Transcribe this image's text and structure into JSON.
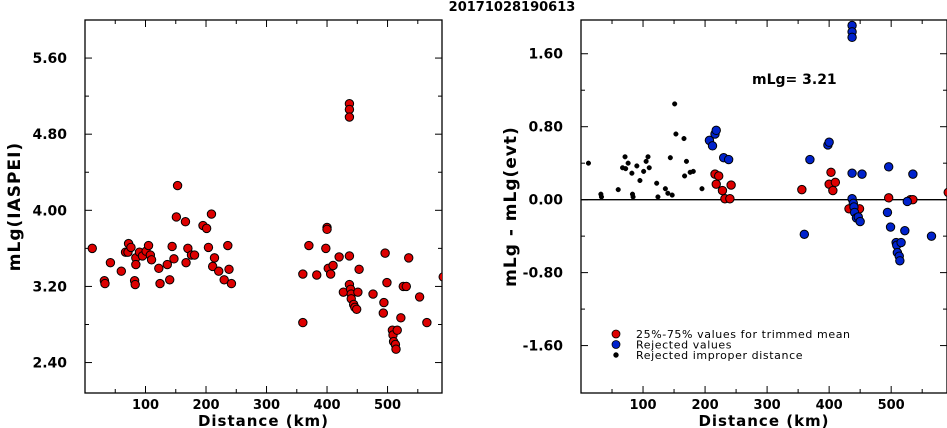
{
  "title": "20171028190613",
  "chart_data": [
    {
      "type": "scatter",
      "xlabel": "Distance (km)",
      "ylabel": "mLg(IASPEI)",
      "xlim": [
        0,
        590
      ],
      "ylim": [
        2.08,
        6.0
      ],
      "xticks": [
        "100",
        "200",
        "300",
        "400",
        "500"
      ],
      "yticks": [
        "5.60",
        "4.80",
        "4.00",
        "3.20",
        "2.40"
      ],
      "series": [
        {
          "color": "#dd0000",
          "points": [
            [
              12,
              3.6
            ],
            [
              32,
              3.26
            ],
            [
              33,
              3.23
            ],
            [
              42,
              3.45
            ],
            [
              60,
              3.36
            ],
            [
              67,
              3.56
            ],
            [
              71,
              3.56
            ],
            [
              72,
              3.65
            ],
            [
              76,
              3.61
            ],
            [
              82,
              3.26
            ],
            [
              83,
              3.22
            ],
            [
              84,
              3.5
            ],
            [
              84,
              3.43
            ],
            [
              90,
              3.56
            ],
            [
              95,
              3.52
            ],
            [
              101,
              3.57
            ],
            [
              105,
              3.63
            ],
            [
              108,
              3.53
            ],
            [
              110,
              3.48
            ],
            [
              122,
              3.39
            ],
            [
              124,
              3.23
            ],
            [
              136,
              3.43
            ],
            [
              140,
              3.27
            ],
            [
              144,
              3.62
            ],
            [
              147,
              3.49
            ],
            [
              151,
              3.93
            ],
            [
              153,
              4.26
            ],
            [
              166,
              3.88
            ],
            [
              167,
              3.45
            ],
            [
              170,
              3.6
            ],
            [
              176,
              3.53
            ],
            [
              181,
              3.53
            ],
            [
              195,
              3.84
            ],
            [
              201,
              3.81
            ],
            [
              204,
              3.61
            ],
            [
              209,
              3.96
            ],
            [
              211,
              3.41
            ],
            [
              214,
              3.5
            ],
            [
              221,
              3.36
            ],
            [
              230,
              3.27
            ],
            [
              236,
              3.63
            ],
            [
              238,
              3.38
            ],
            [
              242,
              3.23
            ],
            [
              360,
              2.82
            ],
            [
              360,
              3.33
            ],
            [
              370,
              3.63
            ],
            [
              383,
              3.32
            ],
            [
              398,
              3.6
            ],
            [
              400,
              3.82
            ],
            [
              400,
              3.8
            ],
            [
              402,
              3.39
            ],
            [
              406,
              3.33
            ],
            [
              410,
              3.42
            ],
            [
              420,
              3.51
            ],
            [
              427,
              3.14
            ],
            [
              437,
              5.12
            ],
            [
              437,
              5.06
            ],
            [
              437,
              4.98
            ],
            [
              437,
              3.52
            ],
            [
              437,
              3.22
            ],
            [
              439,
              3.17
            ],
            [
              440,
              3.12
            ],
            [
              440,
              3.07
            ],
            [
              444,
              3.01
            ],
            [
              446,
              2.98
            ],
            [
              449,
              2.96
            ],
            [
              451,
              3.14
            ],
            [
              453,
              3.38
            ],
            [
              476,
              3.12
            ],
            [
              493,
              2.92
            ],
            [
              494,
              3.03
            ],
            [
              496,
              3.55
            ],
            [
              499,
              3.24
            ],
            [
              508,
              2.74
            ],
            [
              509,
              2.69
            ],
            [
              510,
              2.62
            ],
            [
              513,
              2.59
            ],
            [
              514,
              2.54
            ],
            [
              516,
              2.74
            ],
            [
              522,
              2.87
            ],
            [
              526,
              3.2
            ],
            [
              531,
              3.2
            ],
            [
              535,
              3.5
            ],
            [
              553,
              3.09
            ],
            [
              565,
              2.82
            ],
            [
              592,
              3.3
            ]
          ]
        }
      ]
    },
    {
      "type": "scatter",
      "xlabel": "Distance (km)",
      "ylabel": "mLg - mLg(evt)",
      "xlim": [
        0,
        590
      ],
      "ylim": [
        -2.12,
        1.97
      ],
      "xticks": [
        "100",
        "200",
        "300",
        "400",
        "500"
      ],
      "yticks": [
        "1.60",
        "0.80",
        "0.00",
        "-0.80",
        "-1.60"
      ],
      "annotation": "mLg= 3.21",
      "reference_line": 0.0,
      "legend": {
        "position": "bottom-left",
        "items": [
          {
            "label": "25%-75% values for trimmed mean",
            "color": "#dd0000",
            "marker": "large"
          },
          {
            "label": "Rejected values",
            "color": "#0022cc",
            "marker": "large"
          },
          {
            "label": "Rejected improper distance",
            "color": "#000000",
            "marker": "small"
          }
        ]
      },
      "series": [
        {
          "name": "25%-75% values for trimmed mean",
          "color": "#dd0000",
          "points": [
            [
              216,
              0.28
            ],
            [
              218,
              0.17
            ],
            [
              222,
              0.26
            ],
            [
              228,
              0.1
            ],
            [
              232,
              0.01
            ],
            [
              240,
              0.01
            ],
            [
              242,
              0.16
            ],
            [
              356,
              0.11
            ],
            [
              400,
              0.17
            ],
            [
              403,
              0.3
            ],
            [
              406,
              0.1
            ],
            [
              410,
              0.19
            ],
            [
              432,
              -0.1
            ],
            [
              444,
              -0.1
            ],
            [
              449,
              -0.1
            ],
            [
              496,
              0.02
            ],
            [
              531,
              0.0
            ],
            [
              535,
              0.0
            ],
            [
              592,
              0.08
            ]
          ]
        },
        {
          "name": "Rejected values",
          "color": "#0022cc",
          "points": [
            [
              207,
              0.65
            ],
            [
              212,
              0.59
            ],
            [
              216,
              0.72
            ],
            [
              218,
              0.76
            ],
            [
              230,
              0.46
            ],
            [
              238,
              0.44
            ],
            [
              360,
              -0.38
            ],
            [
              369,
              0.44
            ],
            [
              398,
              0.6
            ],
            [
              400,
              0.63
            ],
            [
              437,
              1.91
            ],
            [
              437,
              1.84
            ],
            [
              437,
              1.78
            ],
            [
              437,
              0.29
            ],
            [
              437,
              0.01
            ],
            [
              439,
              -0.04
            ],
            [
              440,
              -0.08
            ],
            [
              441,
              -0.14
            ],
            [
              444,
              -0.2
            ],
            [
              447,
              -0.19
            ],
            [
              450,
              -0.24
            ],
            [
              453,
              0.28
            ],
            [
              494,
              -0.14
            ],
            [
              496,
              0.36
            ],
            [
              499,
              -0.3
            ],
            [
              508,
              -0.47
            ],
            [
              509,
              -0.5
            ],
            [
              510,
              -0.58
            ],
            [
              513,
              -0.62
            ],
            [
              514,
              -0.67
            ],
            [
              516,
              -0.47
            ],
            [
              522,
              -0.34
            ],
            [
              526,
              -0.02
            ],
            [
              535,
              0.28
            ],
            [
              565,
              -0.4
            ]
          ]
        },
        {
          "name": "Rejected improper distance",
          "color": "#000000",
          "points": [
            [
              12,
              0.4
            ],
            [
              32,
              0.06
            ],
            [
              33,
              0.03
            ],
            [
              60,
              0.11
            ],
            [
              67,
              0.35
            ],
            [
              71,
              0.47
            ],
            [
              72,
              0.34
            ],
            [
              76,
              0.4
            ],
            [
              82,
              0.29
            ],
            [
              83,
              0.06
            ],
            [
              84,
              0.03
            ],
            [
              90,
              0.37
            ],
            [
              95,
              0.21
            ],
            [
              101,
              0.31
            ],
            [
              105,
              0.42
            ],
            [
              108,
              0.47
            ],
            [
              110,
              0.35
            ],
            [
              122,
              0.18
            ],
            [
              124,
              0.03
            ],
            [
              136,
              0.12
            ],
            [
              140,
              0.07
            ],
            [
              144,
              0.46
            ],
            [
              147,
              0.05
            ],
            [
              151,
              1.05
            ],
            [
              153,
              0.72
            ],
            [
              166,
              0.67
            ],
            [
              167,
              0.26
            ],
            [
              170,
              0.42
            ],
            [
              176,
              0.3
            ],
            [
              181,
              0.31
            ],
            [
              195,
              0.12
            ]
          ]
        }
      ]
    }
  ]
}
